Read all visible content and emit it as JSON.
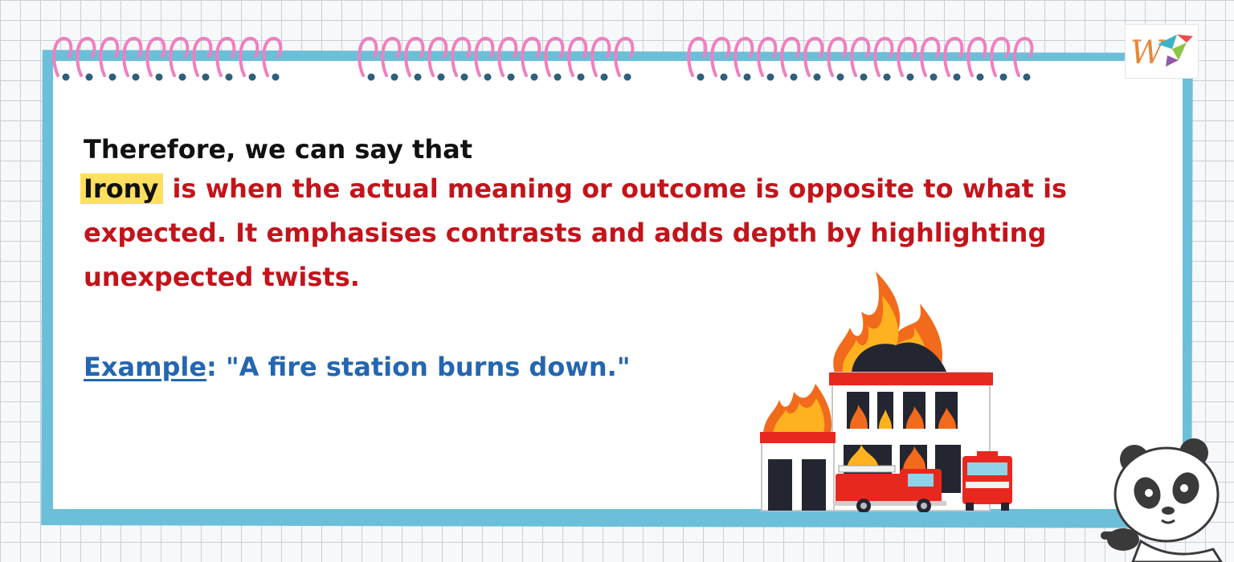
{
  "content": {
    "intro": "Therefore, we can say that",
    "term": "Irony",
    "definition_rest": " is when the actual meaning or outcome is opposite to what is expected. It emphasises contrasts and adds depth by highlighting unexpected twists.",
    "example_label": "Example",
    "example_separator": ": ",
    "example_text": "\"A fire station burns down.\""
  },
  "colors": {
    "frame": "#6cbfd9",
    "spiral_pink": "#f07fbf",
    "hole": "#2f5f7a",
    "definition_red": "#c3141b",
    "example_blue": "#2466b0",
    "highlight_yellow": "#ffdf5e"
  },
  "icons": {
    "logo": "w-logo-icon",
    "illustration": "burning-fire-station-icon",
    "mascot": "panda-pointing-icon"
  }
}
